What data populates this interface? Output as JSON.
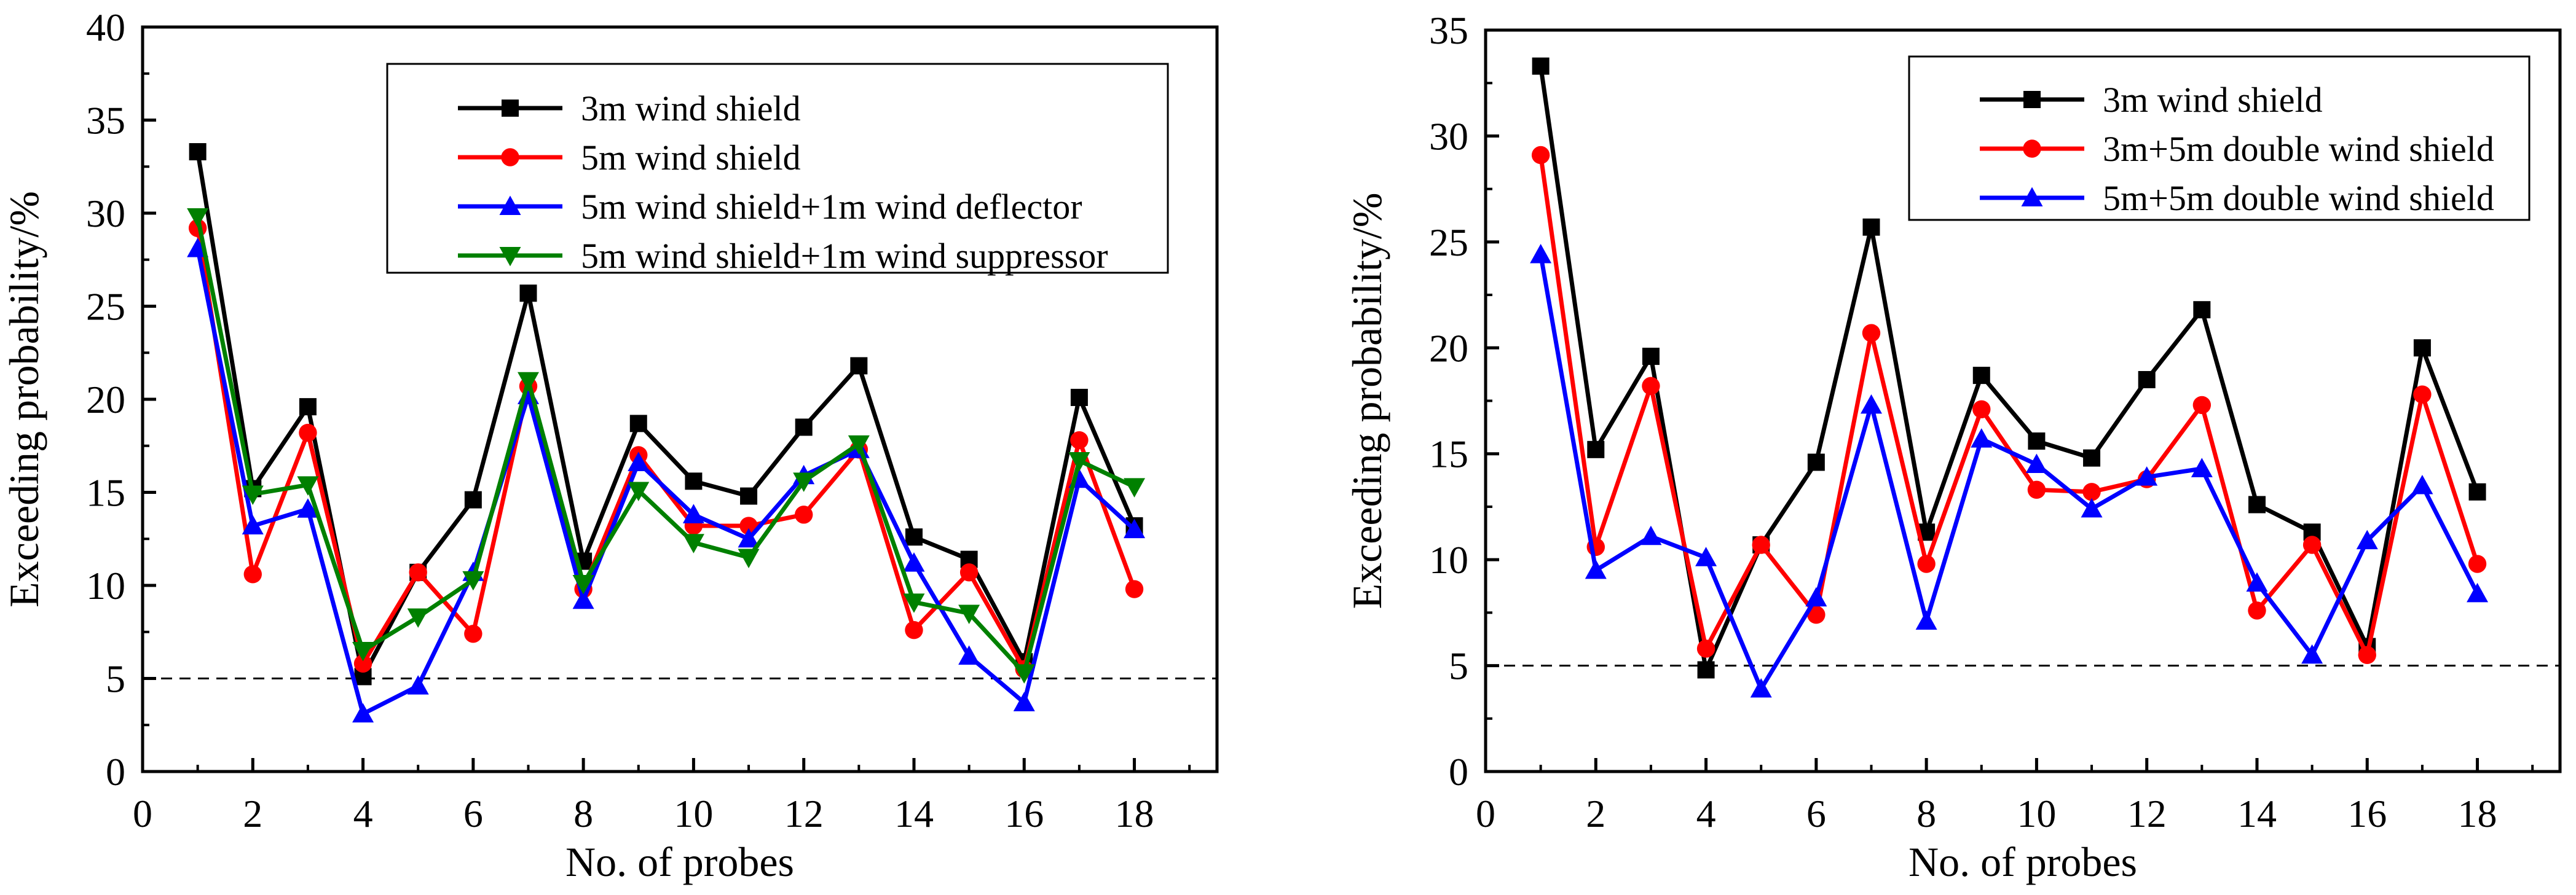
{
  "chart_data": [
    {
      "type": "line",
      "xlabel": "No. of probes",
      "ylabel": "Exceeding probability/%",
      "xlim": [
        0,
        19.5
      ],
      "ylim": [
        0,
        40
      ],
      "xticks": [
        0,
        2,
        4,
        6,
        8,
        10,
        12,
        14,
        16,
        18
      ],
      "yticks": [
        0,
        5,
        10,
        15,
        20,
        25,
        30,
        35,
        40
      ],
      "reference_line": {
        "y": 5,
        "style": "dashed"
      },
      "legend_position": "top-right",
      "x": [
        1,
        2,
        3,
        4,
        5,
        6,
        7,
        8,
        9,
        10,
        11,
        12,
        13,
        14,
        15,
        16,
        17,
        18
      ],
      "series": [
        {
          "name": "3m wind shield",
          "color": "#000000",
          "marker": "square",
          "values": [
            33.3,
            15.2,
            19.6,
            5.1,
            10.7,
            14.6,
            25.7,
            11.3,
            18.7,
            15.6,
            14.8,
            18.5,
            21.8,
            12.6,
            11.4,
            5.9,
            20.1,
            13.2
          ]
        },
        {
          "name": "5m wind shield",
          "color": "#ff0000",
          "marker": "circle",
          "values": [
            29.2,
            10.6,
            18.2,
            5.8,
            10.7,
            7.4,
            20.7,
            9.8,
            17.0,
            13.2,
            13.2,
            13.8,
            17.3,
            7.6,
            10.7,
            5.5,
            17.8,
            9.8
          ]
        },
        {
          "name": "5m wind shield+1m wind deflector",
          "color": "#0000ff",
          "marker": "triangle-up",
          "values": [
            28.1,
            13.2,
            14.1,
            3.1,
            4.6,
            10.7,
            20.2,
            9.2,
            16.6,
            13.8,
            12.5,
            15.9,
            17.3,
            11.2,
            6.2,
            3.7,
            15.7,
            13.0
          ]
        },
        {
          "name": "5m wind shield+1m wind suppressor",
          "color": "#008000",
          "marker": "triangle-down",
          "values": [
            29.8,
            14.9,
            15.4,
            6.5,
            8.3,
            10.3,
            21.0,
            10.1,
            15.1,
            12.3,
            11.5,
            15.6,
            17.6,
            9.1,
            8.5,
            5.3,
            16.7,
            15.3
          ]
        }
      ]
    },
    {
      "type": "line",
      "xlabel": "No. of probes",
      "ylabel": "Exceeding probability/%",
      "xlim": [
        0,
        19.5
      ],
      "ylim": [
        0,
        35
      ],
      "xticks": [
        0,
        2,
        4,
        6,
        8,
        10,
        12,
        14,
        16,
        18
      ],
      "yticks": [
        0,
        5,
        10,
        15,
        20,
        25,
        30,
        35
      ],
      "reference_line": {
        "y": 5,
        "style": "dashed"
      },
      "legend_position": "top-right",
      "x": [
        1,
        2,
        3,
        4,
        5,
        6,
        7,
        8,
        9,
        10,
        11,
        12,
        13,
        14,
        15,
        16,
        17,
        18
      ],
      "series": [
        {
          "name": "3m wind shield",
          "color": "#000000",
          "marker": "square",
          "values": [
            33.3,
            15.2,
            19.6,
            4.8,
            10.7,
            14.6,
            25.7,
            11.3,
            18.7,
            15.6,
            14.8,
            18.5,
            21.8,
            12.6,
            11.3,
            5.9,
            20.0,
            13.2
          ]
        },
        {
          "name": "3m+5m double wind shield",
          "color": "#ff0000",
          "marker": "circle",
          "values": [
            29.1,
            10.6,
            18.2,
            5.8,
            10.7,
            7.4,
            20.7,
            9.8,
            17.1,
            13.3,
            13.2,
            13.8,
            17.3,
            7.6,
            10.7,
            5.5,
            17.8,
            9.8
          ]
        },
        {
          "name": "5m+5m double wind shield",
          "color": "#0000ff",
          "marker": "triangle-up",
          "values": [
            24.4,
            9.5,
            11.1,
            10.1,
            3.9,
            8.2,
            17.3,
            7.1,
            15.7,
            14.5,
            12.4,
            13.9,
            14.3,
            8.9,
            5.5,
            10.9,
            13.5,
            8.4
          ]
        }
      ]
    }
  ]
}
